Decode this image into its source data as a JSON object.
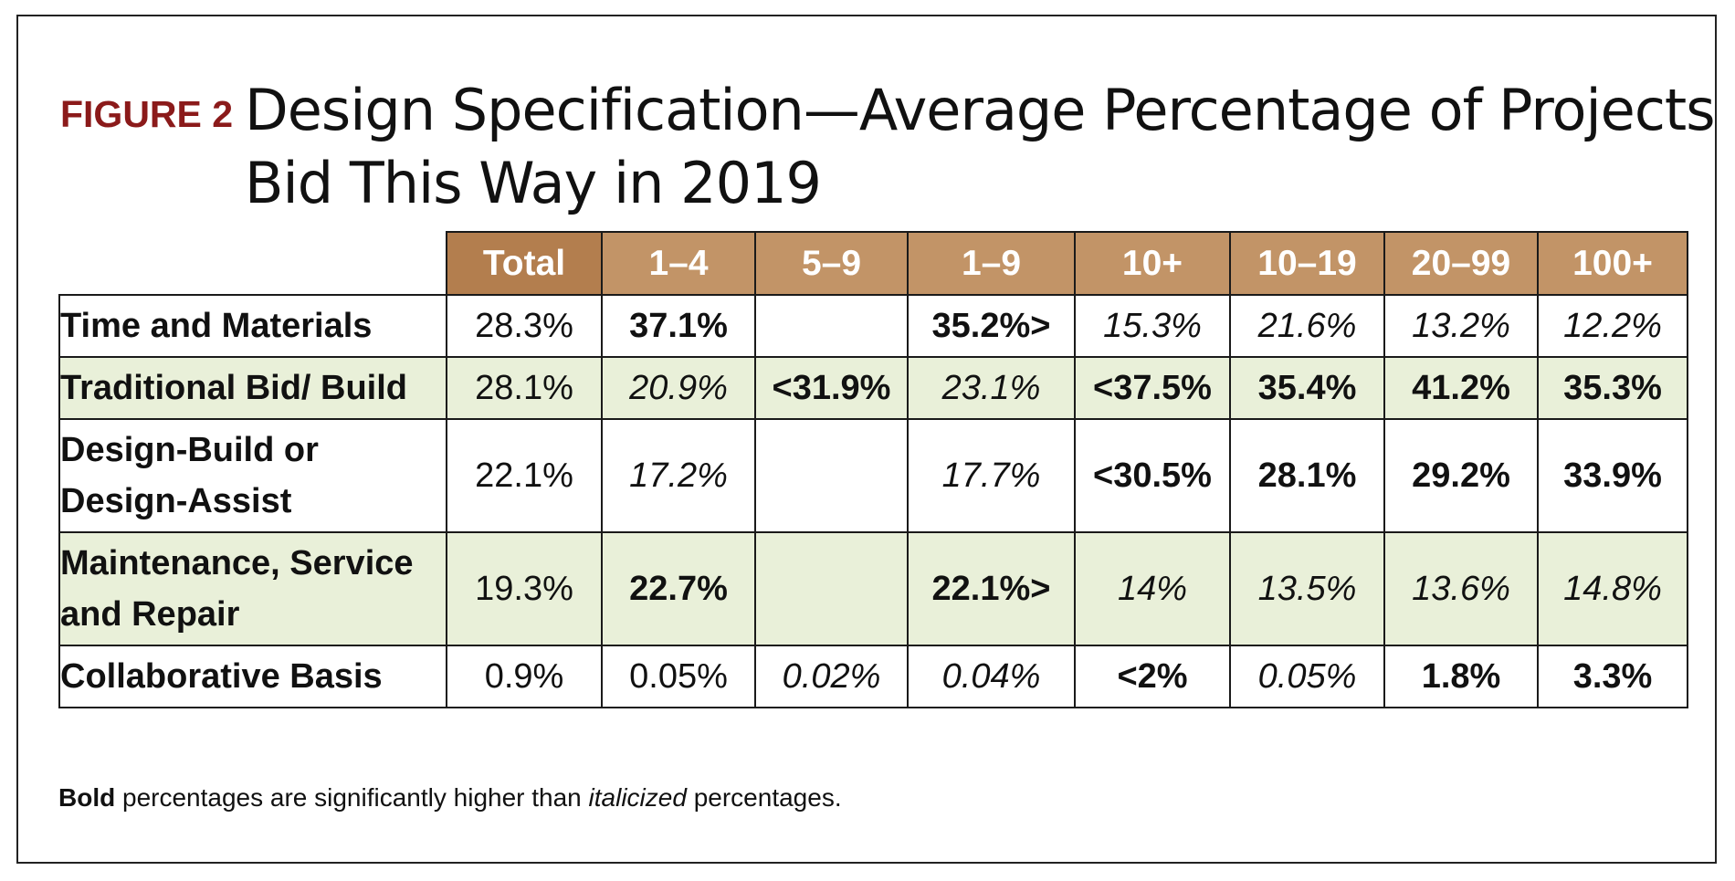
{
  "chart_data": {
    "type": "table",
    "figure_label": "FIGURE 2",
    "title_line1": "Design Specification—Average Percentage of Projects",
    "title_line2": "Bid This Way in 2019",
    "colors": {
      "figure_label": "#8b1a1a",
      "header_total": "#b37e4e",
      "header_other": "#c29467",
      "header_text": "#ffffff",
      "shaded_row": "#e9f0d9",
      "border": "#1a1a1a"
    },
    "columns": [
      "Total",
      "1–4",
      "5–9",
      "1–9",
      "10+",
      "10–19",
      "20–99",
      "100+"
    ],
    "rows": [
      {
        "label": "Time and Materials",
        "shaded": false,
        "cells": [
          {
            "text": "28.3%",
            "style": "normal"
          },
          {
            "text": "37.1%",
            "style": "bold"
          },
          {
            "text": "",
            "style": "normal"
          },
          {
            "text": "35.2%>",
            "style": "bold"
          },
          {
            "text": "15.3%",
            "style": "italic"
          },
          {
            "text": "21.6%",
            "style": "italic"
          },
          {
            "text": "13.2%",
            "style": "italic"
          },
          {
            "text": "12.2%",
            "style": "italic"
          }
        ]
      },
      {
        "label": "Traditional Bid/ Build",
        "shaded": true,
        "cells": [
          {
            "text": "28.1%",
            "style": "normal"
          },
          {
            "text": "20.9%",
            "style": "italic"
          },
          {
            "text": "<31.9%",
            "style": "bold"
          },
          {
            "text": "23.1%",
            "style": "italic"
          },
          {
            "text": "<37.5%",
            "style": "bold"
          },
          {
            "text": "35.4%",
            "style": "bold"
          },
          {
            "text": "41.2%",
            "style": "bold"
          },
          {
            "text": "35.3%",
            "style": "bold"
          }
        ]
      },
      {
        "label": "Design-Build or Design-Assist",
        "shaded": false,
        "cells": [
          {
            "text": "22.1%",
            "style": "normal"
          },
          {
            "text": "17.2%",
            "style": "italic"
          },
          {
            "text": "",
            "style": "normal"
          },
          {
            "text": "17.7%",
            "style": "italic"
          },
          {
            "text": "<30.5%",
            "style": "bold"
          },
          {
            "text": "28.1%",
            "style": "bold"
          },
          {
            "text": "29.2%",
            "style": "bold"
          },
          {
            "text": "33.9%",
            "style": "bold"
          }
        ]
      },
      {
        "label": "Maintenance, Service and Repair",
        "shaded": true,
        "cells": [
          {
            "text": "19.3%",
            "style": "normal"
          },
          {
            "text": "22.7%",
            "style": "bold"
          },
          {
            "text": "",
            "style": "normal"
          },
          {
            "text": "22.1%>",
            "style": "bold"
          },
          {
            "text": "14%",
            "style": "italic"
          },
          {
            "text": "13.5%",
            "style": "italic"
          },
          {
            "text": "13.6%",
            "style": "italic"
          },
          {
            "text": "14.8%",
            "style": "italic"
          }
        ]
      },
      {
        "label": "Collaborative Basis",
        "shaded": false,
        "cells": [
          {
            "text": "0.9%",
            "style": "normal"
          },
          {
            "text": "0.05%",
            "style": "normal"
          },
          {
            "text": "0.02%",
            "style": "italic"
          },
          {
            "text": "0.04%",
            "style": "italic"
          },
          {
            "text": "<2%",
            "style": "bold"
          },
          {
            "text": "0.05%",
            "style": "italic"
          },
          {
            "text": "1.8%",
            "style": "bold"
          },
          {
            "text": "3.3%",
            "style": "bold"
          }
        ]
      }
    ],
    "footnote": {
      "bold_word": "Bold",
      "middle": " percentages are significantly higher than ",
      "italic_word": "italicized",
      "end": " percentages."
    }
  }
}
